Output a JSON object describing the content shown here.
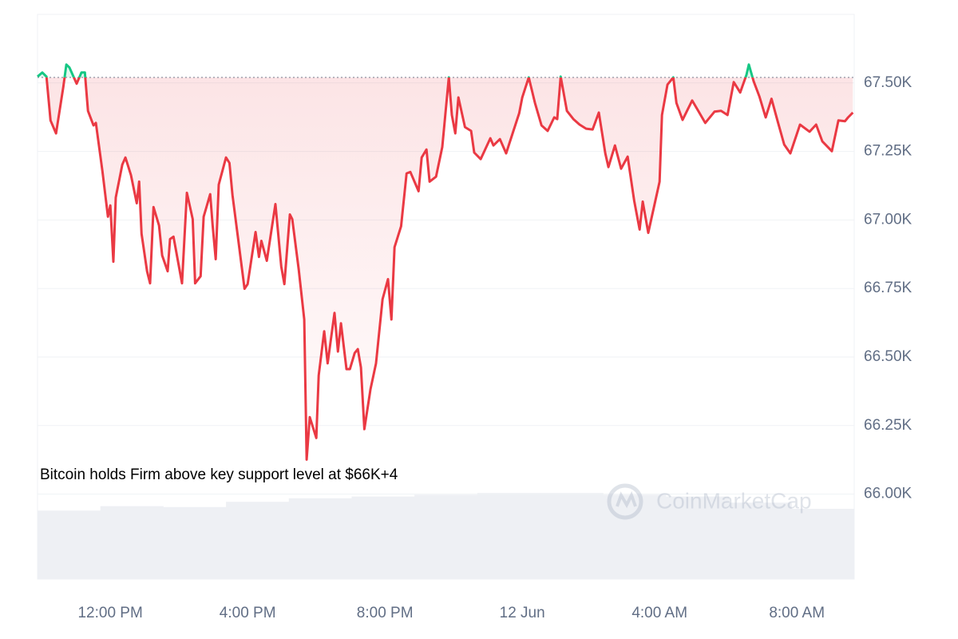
{
  "chart_data": {
    "type": "line",
    "annotation": "Bitcoin holds Firm above key support level at $66K+4",
    "watermark": "CoinMarketCap",
    "xlim": [
      9.88,
      33.67
    ],
    "xticks": [
      {
        "value": 12,
        "label": "12:00 PM"
      },
      {
        "value": 16,
        "label": "4:00 PM"
      },
      {
        "value": 20,
        "label": "8:00 PM"
      },
      {
        "value": 24,
        "label": "12 Jun"
      },
      {
        "value": 28,
        "label": "4:00 AM"
      },
      {
        "value": 32,
        "label": "8:00 AM"
      }
    ],
    "ylim": [
      65.69,
      67.75
    ],
    "yticks": [
      {
        "value": 66.0,
        "label": "66.00K"
      },
      {
        "value": 66.25,
        "label": "66.25K"
      },
      {
        "value": 66.5,
        "label": "66.50K"
      },
      {
        "value": 66.75,
        "label": "66.75K"
      },
      {
        "value": 67.0,
        "label": "67.00K"
      },
      {
        "value": 67.25,
        "label": "67.25K"
      },
      {
        "value": 67.5,
        "label": "67.50K"
      }
    ],
    "grid": true,
    "baseline": 67.52,
    "color_above": "#16c784",
    "color_below": "#ea3943",
    "x": [
      9.88,
      10.02,
      10.14,
      10.26,
      10.42,
      10.63,
      10.72,
      10.81,
      11.02,
      11.16,
      11.26,
      11.35,
      11.51,
      11.58,
      11.77,
      11.93,
      12.0,
      12.09,
      12.16,
      12.35,
      12.44,
      12.6,
      12.77,
      12.84,
      12.91,
      13.07,
      13.16,
      13.26,
      13.42,
      13.51,
      13.67,
      13.74,
      13.84,
      14.09,
      14.23,
      14.4,
      14.47,
      14.63,
      14.72,
      14.91,
      14.98,
      15.07,
      15.16,
      15.37,
      15.47,
      15.56,
      15.74,
      15.91,
      16.0,
      16.23,
      16.33,
      16.4,
      16.56,
      16.81,
      16.98,
      17.07,
      17.23,
      17.3,
      17.49,
      17.65,
      17.72,
      17.81,
      18.0,
      18.07,
      18.23,
      18.33,
      18.53,
      18.63,
      18.72,
      18.88,
      18.98,
      19.12,
      19.21,
      19.3,
      19.4,
      19.58,
      19.74,
      19.93,
      20.09,
      20.19,
      20.28,
      20.47,
      20.63,
      20.74,
      20.98,
      21.07,
      21.21,
      21.3,
      21.49,
      21.67,
      21.86,
      21.95,
      22.05,
      22.14,
      22.33,
      22.51,
      22.6,
      22.79,
      23.07,
      23.16,
      23.35,
      23.53,
      23.72,
      23.91,
      24.0,
      24.19,
      24.37,
      24.56,
      24.74,
      24.93,
      25.02,
      25.12,
      25.3,
      25.49,
      25.67,
      25.86,
      26.05,
      26.23,
      26.42,
      26.51,
      26.7,
      26.88,
      27.07,
      27.26,
      27.42,
      27.51,
      27.67,
      27.86,
      28.0,
      28.07,
      28.23,
      28.4,
      28.49,
      28.67,
      28.95,
      29.14,
      29.33,
      29.6,
      29.79,
      29.98,
      30.16,
      30.35,
      30.53,
      30.6,
      30.74,
      30.91,
      31.09,
      31.26,
      31.44,
      31.63,
      31.81,
      32.09,
      32.37,
      32.56,
      32.74,
      33.02,
      33.21,
      33.4,
      33.49,
      33.63
    ],
    "values": [
      67.523,
      67.538,
      67.523,
      67.363,
      67.316,
      67.485,
      67.567,
      67.556,
      67.497,
      67.538,
      67.538,
      67.398,
      67.345,
      67.354,
      67.178,
      67.012,
      67.053,
      66.848,
      67.082,
      67.202,
      67.228,
      67.164,
      67.061,
      67.14,
      66.95,
      66.813,
      66.769,
      67.047,
      66.98,
      66.871,
      66.813,
      66.93,
      66.939,
      66.769,
      67.099,
      67.003,
      66.769,
      66.795,
      67.012,
      67.094,
      66.982,
      66.857,
      67.129,
      67.228,
      67.208,
      67.091,
      66.915,
      66.749,
      66.766,
      66.956,
      66.865,
      66.924,
      66.851,
      67.058,
      66.83,
      66.766,
      67.02,
      67.003,
      66.819,
      66.637,
      66.126,
      66.281,
      66.205,
      66.433,
      66.594,
      66.477,
      66.661,
      66.52,
      66.623,
      66.456,
      66.456,
      66.515,
      66.529,
      66.462,
      66.237,
      66.383,
      66.477,
      66.711,
      66.784,
      66.637,
      66.901,
      66.977,
      67.17,
      67.175,
      67.105,
      67.228,
      67.257,
      67.14,
      67.158,
      67.266,
      67.52,
      67.383,
      67.316,
      67.447,
      67.339,
      67.325,
      67.246,
      67.222,
      67.298,
      67.272,
      67.295,
      67.243,
      67.316,
      67.389,
      67.447,
      67.52,
      67.427,
      67.345,
      67.325,
      67.374,
      67.368,
      67.523,
      67.398,
      67.368,
      67.348,
      67.333,
      67.33,
      67.392,
      67.243,
      67.193,
      67.272,
      67.187,
      67.231,
      67.07,
      66.965,
      67.067,
      66.953,
      67.061,
      67.14,
      67.383,
      67.494,
      67.52,
      67.427,
      67.365,
      67.436,
      67.395,
      67.354,
      67.395,
      67.398,
      67.383,
      67.503,
      67.465,
      67.529,
      67.567,
      67.506,
      67.45,
      67.374,
      67.442,
      67.36,
      67.275,
      67.243,
      67.348,
      67.322,
      67.348,
      67.287,
      67.251,
      67.363,
      67.36,
      67.374,
      67.392
    ],
    "volume": {
      "color": "#eef0f4",
      "values": [
        78,
        83,
        82,
        88,
        92,
        94,
        96,
        98,
        98,
        96,
        94,
        87,
        80
      ]
    }
  }
}
